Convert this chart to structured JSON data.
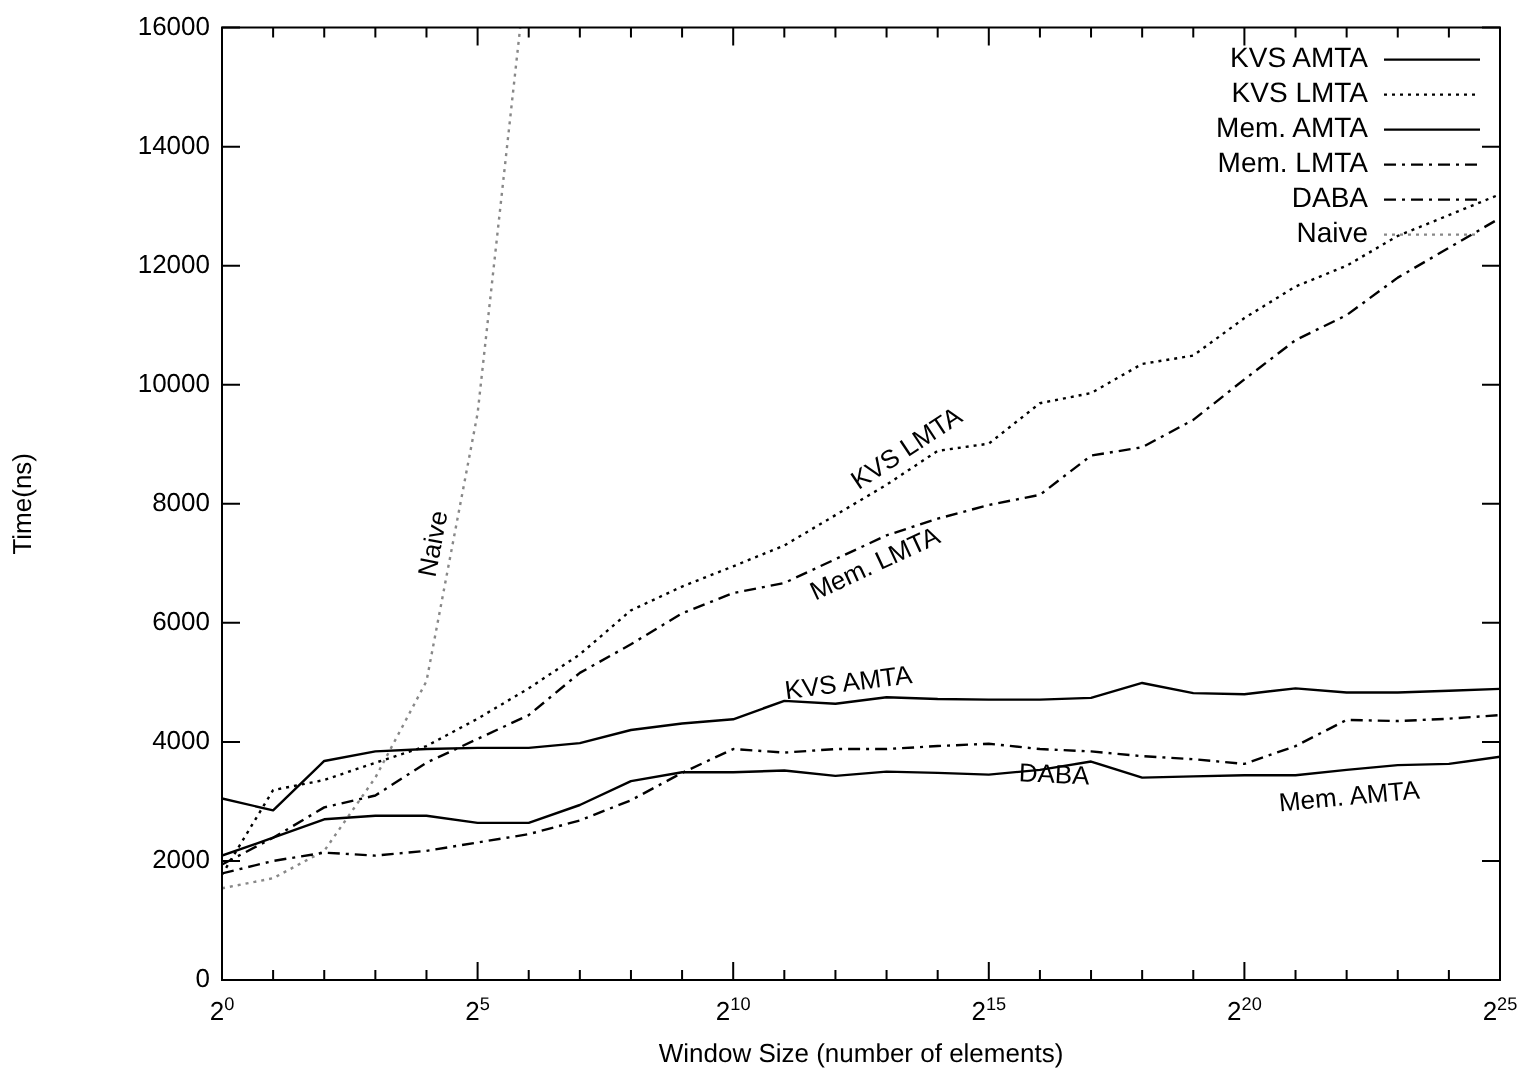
{
  "chart_data": {
    "type": "line",
    "xlabel": "Window Size (number of elements)",
    "ylabel": "Time(ns)",
    "log": "x",
    "x": [
      1,
      2,
      4,
      8,
      16,
      32,
      64,
      128,
      256,
      512,
      1024,
      2048,
      4096,
      8192,
      16384,
      32768,
      65536,
      131072,
      262144,
      524288,
      1048576,
      2097152,
      4194304,
      8388608,
      16777216,
      33554432
    ],
    "series": [
      {
        "name": "KVS AMTA",
        "color": "#000000",
        "line_style": "solid",
        "values": [
          3050,
          2850,
          3680,
          3840,
          3880,
          3900,
          3900,
          3980,
          4200,
          4310,
          4380,
          4690,
          4640,
          4750,
          4720,
          4710,
          4710,
          4740,
          4990,
          4820,
          4800,
          4900,
          4830,
          4830,
          4860,
          4890
        ]
      },
      {
        "name": "KVS LMTA",
        "color": "#000000",
        "line_style": "dotted",
        "values": [
          1770,
          3190,
          3360,
          3650,
          3930,
          4390,
          4900,
          5470,
          6210,
          6610,
          6950,
          7300,
          7810,
          8320,
          8890,
          9010,
          9690,
          9860,
          10350,
          10490,
          11120,
          11650,
          12000,
          12500,
          12850,
          13200
        ]
      },
      {
        "name": "Mem. AMTA",
        "color": "#000000",
        "line_style": "solid",
        "values": [
          2090,
          2390,
          2700,
          2760,
          2760,
          2640,
          2640,
          2940,
          3340,
          3490,
          3490,
          3520,
          3430,
          3500,
          3480,
          3450,
          3530,
          3670,
          3400,
          3420,
          3440,
          3440,
          3530,
          3610,
          3630,
          3750
        ]
      },
      {
        "name": "Mem. LMTA",
        "color": "#000000",
        "line_style": "dashed",
        "values": [
          1940,
          2390,
          2900,
          3100,
          3650,
          4050,
          4450,
          5160,
          5640,
          6160,
          6500,
          6670,
          7070,
          7470,
          7750,
          7980,
          8150,
          8810,
          8950,
          9410,
          10090,
          10750,
          11170,
          11800,
          12300,
          12800
        ]
      },
      {
        "name": "DABA",
        "color": "#000000",
        "line_style": "dashed",
        "values": [
          1790,
          2000,
          2140,
          2090,
          2170,
          2310,
          2450,
          2680,
          3020,
          3480,
          3880,
          3820,
          3880,
          3880,
          3930,
          3970,
          3880,
          3840,
          3760,
          3710,
          3630,
          3930,
          4370,
          4350,
          4390,
          4450
        ]
      },
      {
        "name": "Naive",
        "color": "#888888",
        "line_style": "dotted",
        "x": [
          1,
          2,
          4,
          8,
          16,
          32,
          57
        ],
        "values": [
          1540,
          1710,
          2170,
          3400,
          5020,
          9520,
          16000
        ]
      }
    ],
    "xlim": [
      1,
      33554432
    ],
    "xticks": [
      {
        "value": 1,
        "label": "2$^{0}$"
      },
      {
        "value": 2,
        "label": null
      },
      {
        "value": 4,
        "label": null
      },
      {
        "value": 8,
        "label": null
      },
      {
        "value": 16,
        "label": null
      },
      {
        "value": 32,
        "label": "2$^{5}$"
      },
      {
        "value": 64,
        "label": null
      },
      {
        "value": 128,
        "label": null
      },
      {
        "value": 256,
        "label": null
      },
      {
        "value": 512,
        "label": null
      },
      {
        "value": 1024,
        "label": "2$^{10}$"
      },
      {
        "value": 2048,
        "label": null
      },
      {
        "value": 4096,
        "label": null
      },
      {
        "value": 8192,
        "label": null
      },
      {
        "value": 16384,
        "label": null
      },
      {
        "value": 32768,
        "label": "2$^{15}$"
      },
      {
        "value": 65536,
        "label": null
      },
      {
        "value": 131072,
        "label": null
      },
      {
        "value": 262144,
        "label": null
      },
      {
        "value": 524288,
        "label": null
      },
      {
        "value": 1048576,
        "label": "2$^{20}$"
      },
      {
        "value": 2097152,
        "label": null
      },
      {
        "value": 4194304,
        "label": null
      },
      {
        "value": 8388608,
        "label": null
      },
      {
        "value": 16777216,
        "label": null
      },
      {
        "value": 33554432,
        "label": "2$^{25}$"
      }
    ],
    "ylim": [
      0,
      16000
    ],
    "yticks": [
      0,
      2000,
      4000,
      6000,
      8000,
      10000,
      12000,
      14000,
      16000
    ],
    "grid": false,
    "legend": "top right",
    "marker": "none"
  }
}
